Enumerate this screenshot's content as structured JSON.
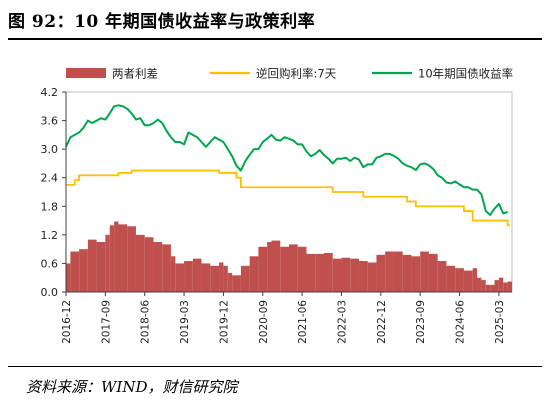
{
  "header": {
    "title": "图 92：10 年期国债收益率与政策利率"
  },
  "footer": {
    "source": "资料来源：WIND，财信研究院"
  },
  "chart_data": {
    "type": "bar+line",
    "x_start": "2016-12",
    "x_end": "2025-05",
    "xticks": [
      "2016-12",
      "2017-09",
      "2018-06",
      "2019-03",
      "2019-12",
      "2020-09",
      "2021-06",
      "2022-03",
      "2022-12",
      "2023-09",
      "2024-06",
      "2025-03"
    ],
    "ylim": [
      0,
      4.2
    ],
    "yticks": [
      "0.0",
      "0.6",
      "1.2",
      "1.8",
      "2.4",
      "3.0",
      "3.6",
      "4.2"
    ],
    "legend_position": "top",
    "series": [
      {
        "name": "两者利差",
        "type": "bar",
        "color": "#c0504d",
        "points": [
          [
            "2016-12",
            0.6
          ],
          [
            "2017-01",
            0.85
          ],
          [
            "2017-03",
            0.9
          ],
          [
            "2017-05",
            1.1
          ],
          [
            "2017-07",
            1.05
          ],
          [
            "2017-09",
            1.2
          ],
          [
            "2017-10",
            1.4
          ],
          [
            "2017-11",
            1.48
          ],
          [
            "2017-12",
            1.42
          ],
          [
            "2018-02",
            1.38
          ],
          [
            "2018-04",
            1.2
          ],
          [
            "2018-06",
            1.15
          ],
          [
            "2018-08",
            1.05
          ],
          [
            "2018-10",
            1.0
          ],
          [
            "2018-12",
            0.75
          ],
          [
            "2019-01",
            0.6
          ],
          [
            "2019-03",
            0.65
          ],
          [
            "2019-05",
            0.7
          ],
          [
            "2019-07",
            0.6
          ],
          [
            "2019-09",
            0.55
          ],
          [
            "2019-11",
            0.62
          ],
          [
            "2019-12",
            0.55
          ],
          [
            "2020-01",
            0.4
          ],
          [
            "2020-02",
            0.35
          ],
          [
            "2020-04",
            0.55
          ],
          [
            "2020-06",
            0.75
          ],
          [
            "2020-08",
            0.95
          ],
          [
            "2020-10",
            1.05
          ],
          [
            "2020-11",
            1.08
          ],
          [
            "2021-01",
            0.95
          ],
          [
            "2021-03",
            1.0
          ],
          [
            "2021-05",
            0.95
          ],
          [
            "2021-07",
            0.8
          ],
          [
            "2021-09",
            0.8
          ],
          [
            "2021-11",
            0.82
          ],
          [
            "2022-01",
            0.7
          ],
          [
            "2022-03",
            0.72
          ],
          [
            "2022-05",
            0.7
          ],
          [
            "2022-07",
            0.65
          ],
          [
            "2022-09",
            0.62
          ],
          [
            "2022-11",
            0.78
          ],
          [
            "2023-01",
            0.85
          ],
          [
            "2023-03",
            0.85
          ],
          [
            "2023-05",
            0.78
          ],
          [
            "2023-07",
            0.75
          ],
          [
            "2023-09",
            0.85
          ],
          [
            "2023-11",
            0.8
          ],
          [
            "2024-01",
            0.65
          ],
          [
            "2024-03",
            0.55
          ],
          [
            "2024-05",
            0.5
          ],
          [
            "2024-07",
            0.45
          ],
          [
            "2024-09",
            0.5
          ],
          [
            "2024-10",
            0.3
          ],
          [
            "2024-11",
            0.25
          ],
          [
            "2024-12",
            0.15
          ],
          [
            "2025-01",
            0.15
          ],
          [
            "2025-02",
            0.25
          ],
          [
            "2025-03",
            0.3
          ],
          [
            "2025-04",
            0.2
          ],
          [
            "2025-05",
            0.22
          ]
        ]
      },
      {
        "name": "逆回购利率:7天",
        "type": "step",
        "color": "#ffc000",
        "points": [
          [
            "2016-12",
            2.25
          ],
          [
            "2017-02",
            2.35
          ],
          [
            "2017-03",
            2.45
          ],
          [
            "2017-12",
            2.5
          ],
          [
            "2018-03",
            2.55
          ],
          [
            "2019-11",
            2.5
          ],
          [
            "2020-03",
            2.4
          ],
          [
            "2020-04",
            2.2
          ],
          [
            "2022-01",
            2.1
          ],
          [
            "2022-08",
            2.0
          ],
          [
            "2023-06",
            1.9
          ],
          [
            "2023-08",
            1.8
          ],
          [
            "2024-07",
            1.7
          ],
          [
            "2024-09",
            1.5
          ],
          [
            "2025-05",
            1.4
          ]
        ]
      },
      {
        "name": "10年期国债收益率",
        "type": "line",
        "color": "#00a64f",
        "points": [
          [
            "2016-12",
            3.05
          ],
          [
            "2017-01",
            3.25
          ],
          [
            "2017-02",
            3.3
          ],
          [
            "2017-03",
            3.35
          ],
          [
            "2017-04",
            3.45
          ],
          [
            "2017-05",
            3.6
          ],
          [
            "2017-06",
            3.55
          ],
          [
            "2017-07",
            3.6
          ],
          [
            "2017-08",
            3.65
          ],
          [
            "2017-09",
            3.62
          ],
          [
            "2017-10",
            3.75
          ],
          [
            "2017-11",
            3.9
          ],
          [
            "2017-12",
            3.92
          ],
          [
            "2018-01",
            3.9
          ],
          [
            "2018-02",
            3.85
          ],
          [
            "2018-03",
            3.75
          ],
          [
            "2018-04",
            3.62
          ],
          [
            "2018-05",
            3.65
          ],
          [
            "2018-06",
            3.5
          ],
          [
            "2018-07",
            3.5
          ],
          [
            "2018-08",
            3.55
          ],
          [
            "2018-09",
            3.62
          ],
          [
            "2018-10",
            3.55
          ],
          [
            "2018-11",
            3.38
          ],
          [
            "2018-12",
            3.25
          ],
          [
            "2019-01",
            3.15
          ],
          [
            "2019-02",
            3.15
          ],
          [
            "2019-03",
            3.1
          ],
          [
            "2019-04",
            3.35
          ],
          [
            "2019-05",
            3.3
          ],
          [
            "2019-06",
            3.25
          ],
          [
            "2019-07",
            3.15
          ],
          [
            "2019-08",
            3.05
          ],
          [
            "2019-09",
            3.15
          ],
          [
            "2019-10",
            3.25
          ],
          [
            "2019-11",
            3.2
          ],
          [
            "2019-12",
            3.15
          ],
          [
            "2020-01",
            3.0
          ],
          [
            "2020-02",
            2.85
          ],
          [
            "2020-03",
            2.65
          ],
          [
            "2020-04",
            2.55
          ],
          [
            "2020-05",
            2.75
          ],
          [
            "2020-06",
            2.88
          ],
          [
            "2020-07",
            3.0
          ],
          [
            "2020-08",
            3.0
          ],
          [
            "2020-09",
            3.15
          ],
          [
            "2020-10",
            3.22
          ],
          [
            "2020-11",
            3.3
          ],
          [
            "2020-12",
            3.2
          ],
          [
            "2021-01",
            3.18
          ],
          [
            "2021-02",
            3.25
          ],
          [
            "2021-03",
            3.22
          ],
          [
            "2021-04",
            3.18
          ],
          [
            "2021-05",
            3.1
          ],
          [
            "2021-06",
            3.1
          ],
          [
            "2021-07",
            2.95
          ],
          [
            "2021-08",
            2.85
          ],
          [
            "2021-09",
            2.9
          ],
          [
            "2021-10",
            2.98
          ],
          [
            "2021-11",
            2.88
          ],
          [
            "2021-12",
            2.8
          ],
          [
            "2022-01",
            2.7
          ],
          [
            "2022-02",
            2.8
          ],
          [
            "2022-03",
            2.8
          ],
          [
            "2022-04",
            2.82
          ],
          [
            "2022-05",
            2.75
          ],
          [
            "2022-06",
            2.82
          ],
          [
            "2022-07",
            2.78
          ],
          [
            "2022-08",
            2.62
          ],
          [
            "2022-09",
            2.68
          ],
          [
            "2022-10",
            2.68
          ],
          [
            "2022-11",
            2.82
          ],
          [
            "2022-12",
            2.85
          ],
          [
            "2023-01",
            2.9
          ],
          [
            "2023-02",
            2.9
          ],
          [
            "2023-03",
            2.86
          ],
          [
            "2023-04",
            2.8
          ],
          [
            "2023-05",
            2.7
          ],
          [
            "2023-06",
            2.65
          ],
          [
            "2023-07",
            2.62
          ],
          [
            "2023-08",
            2.56
          ],
          [
            "2023-09",
            2.68
          ],
          [
            "2023-10",
            2.7
          ],
          [
            "2023-11",
            2.66
          ],
          [
            "2023-12",
            2.58
          ],
          [
            "2024-01",
            2.45
          ],
          [
            "2024-02",
            2.4
          ],
          [
            "2024-03",
            2.3
          ],
          [
            "2024-04",
            2.28
          ],
          [
            "2024-05",
            2.32
          ],
          [
            "2024-06",
            2.26
          ],
          [
            "2024-07",
            2.2
          ],
          [
            "2024-08",
            2.2
          ],
          [
            "2024-09",
            2.15
          ],
          [
            "2024-10",
            2.15
          ],
          [
            "2024-11",
            2.05
          ],
          [
            "2024-12",
            1.7
          ],
          [
            "2025-01",
            1.62
          ],
          [
            "2025-02",
            1.75
          ],
          [
            "2025-03",
            1.85
          ],
          [
            "2025-04",
            1.65
          ],
          [
            "2025-05",
            1.68
          ]
        ]
      }
    ]
  }
}
